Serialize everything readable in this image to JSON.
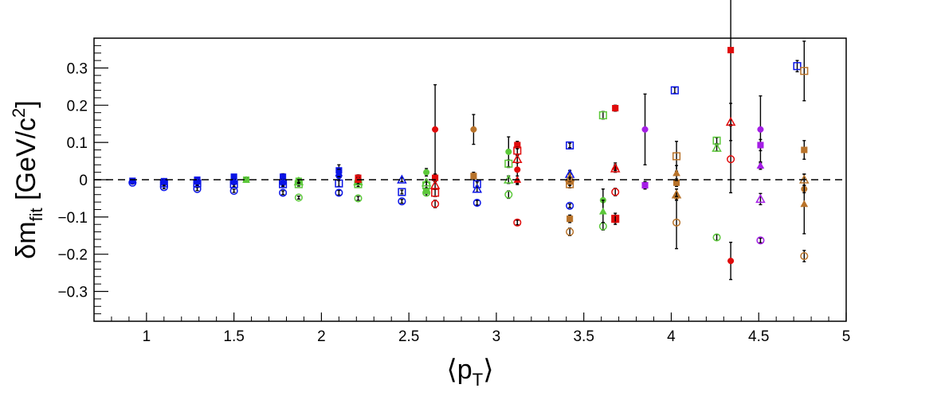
{
  "chart_data": {
    "type": "scatter",
    "title": "",
    "xlabel_main": "⟨p",
    "xlabel_sub": "T",
    "xlabel_end": "⟩",
    "ylabel_main": "δm",
    "ylabel_sub": "fit",
    "ylabel_rest": " [GeV/c",
    "ylabel_sup": "2",
    "ylabel_end": "]",
    "xlim": [
      0.7,
      5.0
    ],
    "ylim": [
      -0.38,
      0.38
    ],
    "xticks": [
      1,
      1.5,
      2,
      2.5,
      3,
      3.5,
      4,
      4.5,
      5
    ],
    "xtick_labels": [
      "1",
      "1.5",
      "2",
      "2.5",
      "3",
      "3.5",
      "4",
      "4.5",
      "5"
    ],
    "yticks": [
      -0.3,
      -0.2,
      -0.1,
      0,
      0.1,
      0.2,
      0.3
    ],
    "ytick_labels": [
      "−0.3",
      "−0.2",
      "−0.1",
      "0",
      "0.1",
      "0.2",
      "0.3"
    ],
    "reference_line": 0,
    "grid": false,
    "colors": {
      "blue": "#0a14e6",
      "green": "#5cc83a",
      "red": "#e00b0b",
      "brown": "#b8732a",
      "purple": "#a51ee6",
      "errorbar": "#000000"
    },
    "series": [
      {
        "color": "blue",
        "marker": "filled-circle",
        "points": [
          [
            0.92,
            -0.005,
            0.004
          ],
          [
            1.1,
            -0.006,
            0.005
          ],
          [
            1.29,
            -0.007,
            0.005
          ],
          [
            1.5,
            -0.007,
            0.006
          ],
          [
            1.78,
            -0.009,
            0.008
          ],
          [
            2.1,
            0.01,
            0.012
          ]
        ]
      },
      {
        "color": "blue",
        "marker": "open-circle",
        "points": [
          [
            0.92,
            -0.008,
            0.003
          ],
          [
            1.1,
            -0.02,
            0.004
          ],
          [
            1.29,
            -0.025,
            0.004
          ],
          [
            1.5,
            -0.03,
            0.004
          ],
          [
            1.78,
            -0.035,
            0.005
          ],
          [
            2.1,
            -0.035,
            0.006
          ],
          [
            2.46,
            -0.058,
            0.005
          ],
          [
            2.89,
            -0.062,
            0.006
          ],
          [
            3.42,
            -0.07,
            0.005
          ]
        ]
      },
      {
        "color": "blue",
        "marker": "filled-square",
        "points": [
          [
            0.92,
            -0.003,
            0.004
          ],
          [
            1.1,
            -0.004,
            0.005
          ],
          [
            1.29,
            0.0,
            0.005
          ],
          [
            1.5,
            0.008,
            0.006
          ],
          [
            1.78,
            0.008,
            0.008
          ],
          [
            2.1,
            0.025,
            0.015
          ]
        ]
      },
      {
        "color": "blue",
        "marker": "open-square",
        "points": [
          [
            1.1,
            -0.01,
            0.005
          ],
          [
            1.29,
            -0.01,
            0.005
          ],
          [
            1.5,
            -0.012,
            0.006
          ],
          [
            1.78,
            -0.012,
            0.006
          ],
          [
            2.1,
            -0.01,
            0.008
          ],
          [
            2.46,
            -0.033,
            0.005
          ],
          [
            2.89,
            -0.012,
            0.006
          ],
          [
            3.42,
            0.092,
            0.006
          ],
          [
            4.02,
            0.24,
            0.008
          ],
          [
            4.72,
            0.305,
            0.015
          ]
        ]
      },
      {
        "color": "blue",
        "marker": "filled-triangle",
        "points": [
          [
            1.1,
            -0.005,
            0.005
          ],
          [
            1.29,
            -0.005,
            0.005
          ],
          [
            1.5,
            -0.005,
            0.006
          ],
          [
            1.78,
            -0.005,
            0.006
          ],
          [
            2.1,
            0.018,
            0.01
          ]
        ]
      },
      {
        "color": "blue",
        "marker": "open-triangle",
        "points": [
          [
            2.46,
            0.0,
            0.005
          ],
          [
            2.89,
            -0.025,
            0.008
          ],
          [
            3.42,
            0.015,
            0.01
          ]
        ]
      },
      {
        "color": "green",
        "marker": "filled-circle",
        "points": [
          [
            1.57,
            0.0,
            0.004
          ],
          [
            1.87,
            -0.002,
            0.005
          ],
          [
            2.21,
            0.002,
            0.006
          ],
          [
            2.6,
            0.02,
            0.01
          ],
          [
            3.07,
            0.075,
            0.04
          ],
          [
            3.61,
            -0.055,
            0.03
          ]
        ]
      },
      {
        "color": "green",
        "marker": "open-circle",
        "points": [
          [
            1.87,
            -0.048,
            0.004
          ],
          [
            2.21,
            -0.05,
            0.005
          ],
          [
            2.6,
            -0.035,
            0.008
          ],
          [
            3.07,
            -0.04,
            0.01
          ],
          [
            3.61,
            -0.125,
            0.01
          ],
          [
            4.26,
            -0.155,
            0.008
          ]
        ]
      },
      {
        "color": "green",
        "marker": "filled-square",
        "points": [
          [
            1.57,
            0.0,
            0.004
          ],
          [
            1.87,
            -0.003,
            0.005
          ],
          [
            2.21,
            -0.005,
            0.006
          ],
          [
            2.6,
            -0.03,
            0.008
          ]
        ]
      },
      {
        "color": "green",
        "marker": "open-square",
        "points": [
          [
            1.87,
            -0.012,
            0.005
          ],
          [
            2.21,
            -0.012,
            0.006
          ],
          [
            2.6,
            -0.015,
            0.008
          ],
          [
            3.07,
            0.043,
            0.01
          ],
          [
            3.61,
            0.173,
            0.01
          ],
          [
            4.26,
            0.105,
            0.008
          ]
        ]
      },
      {
        "color": "green",
        "marker": "filled-triangle",
        "points": [
          [
            1.57,
            0.0,
            0.004
          ],
          [
            2.21,
            0.0,
            0.006
          ],
          [
            3.61,
            -0.085,
            0.03
          ]
        ]
      },
      {
        "color": "green",
        "marker": "open-triangle",
        "points": [
          [
            1.87,
            -0.005,
            0.005
          ],
          [
            2.21,
            -0.005,
            0.006
          ],
          [
            2.6,
            -0.008,
            0.008
          ],
          [
            3.07,
            0.0,
            0.01
          ],
          [
            4.26,
            0.085,
            0.008
          ]
        ]
      },
      {
        "color": "red",
        "marker": "filled-circle",
        "points": [
          [
            2.21,
            0.0,
            0.006
          ],
          [
            2.65,
            0.135,
            0.12
          ],
          [
            3.12,
            0.027,
            0.04
          ],
          [
            4.34,
            -0.218,
            0.05
          ]
        ]
      },
      {
        "color": "red",
        "marker": "open-circle",
        "points": [
          [
            2.65,
            -0.065,
            0.01
          ],
          [
            3.12,
            -0.115,
            0.006
          ],
          [
            3.68,
            -0.033,
            0.01
          ],
          [
            4.34,
            0.055,
            0.09
          ]
        ]
      },
      {
        "color": "red",
        "marker": "filled-square",
        "points": [
          [
            2.21,
            0.005,
            0.008
          ],
          [
            2.65,
            0.005,
            0.01
          ],
          [
            3.12,
            0.093,
            0.01
          ],
          [
            3.68,
            0.192,
            0.008
          ],
          [
            3.68,
            -0.105,
            0.015
          ],
          [
            4.34,
            0.348,
            0.2
          ]
        ]
      },
      {
        "color": "red",
        "marker": "open-square",
        "points": [
          [
            2.65,
            -0.035,
            0.01
          ],
          [
            3.12,
            0.078,
            0.01
          ],
          [
            3.68,
            -0.105,
            0.01
          ]
        ]
      },
      {
        "color": "red",
        "marker": "filled-triangle",
        "points": [
          [
            2.21,
            0.0,
            0.006
          ],
          [
            3.12,
            0.0,
            0.01
          ],
          [
            3.68,
            0.035,
            0.01
          ]
        ]
      },
      {
        "color": "red",
        "marker": "open-triangle",
        "points": [
          [
            2.65,
            -0.015,
            0.01
          ],
          [
            3.12,
            0.055,
            0.01
          ],
          [
            3.68,
            0.03,
            0.01
          ],
          [
            4.34,
            0.155,
            0.05
          ]
        ]
      },
      {
        "color": "brown",
        "marker": "filled-circle",
        "points": [
          [
            2.87,
            0.135,
            0.04
          ],
          [
            3.42,
            -0.005,
            0.01
          ],
          [
            4.03,
            -0.045,
            0.01
          ],
          [
            4.76,
            -0.025,
            0.01
          ]
        ]
      },
      {
        "color": "brown",
        "marker": "open-circle",
        "points": [
          [
            3.42,
            -0.14,
            0.01
          ],
          [
            4.03,
            -0.115,
            0.07
          ],
          [
            4.76,
            -0.205,
            0.015
          ]
        ]
      },
      {
        "color": "brown",
        "marker": "filled-square",
        "points": [
          [
            2.87,
            0.01,
            0.01
          ],
          [
            3.42,
            -0.105,
            0.01
          ],
          [
            4.03,
            -0.008,
            0.01
          ],
          [
            4.76,
            0.08,
            0.025
          ]
        ]
      },
      {
        "color": "brown",
        "marker": "open-square",
        "points": [
          [
            3.42,
            -0.012,
            0.01
          ],
          [
            4.03,
            0.063,
            0.04
          ],
          [
            4.76,
            0.292,
            0.08
          ]
        ]
      },
      {
        "color": "brown",
        "marker": "filled-triangle",
        "points": [
          [
            3.42,
            -0.005,
            0.01
          ],
          [
            4.03,
            0.018,
            0.02
          ],
          [
            4.76,
            -0.065,
            0.08
          ]
        ]
      },
      {
        "color": "brown",
        "marker": "open-triangle",
        "points": [
          [
            3.42,
            0.005,
            0.01
          ],
          [
            4.03,
            -0.04,
            0.015
          ],
          [
            4.76,
            0.0,
            0.015
          ]
        ]
      },
      {
        "color": "purple",
        "marker": "filled-circle",
        "points": [
          [
            3.85,
            0.135,
            0.095
          ],
          [
            4.51,
            0.135,
            0.09
          ]
        ]
      },
      {
        "color": "purple",
        "marker": "open-circle",
        "points": [
          [
            4.51,
            -0.163,
            0.006
          ]
        ]
      },
      {
        "color": "purple",
        "marker": "filled-square",
        "points": [
          [
            3.85,
            -0.015,
            0.01
          ],
          [
            4.51,
            0.093,
            0.015
          ]
        ]
      },
      {
        "color": "purple",
        "marker": "filled-triangle",
        "points": [
          [
            4.51,
            0.038,
            0.01
          ]
        ]
      },
      {
        "color": "purple",
        "marker": "open-triangle",
        "points": [
          [
            4.51,
            -0.052,
            0.015
          ]
        ]
      }
    ]
  }
}
